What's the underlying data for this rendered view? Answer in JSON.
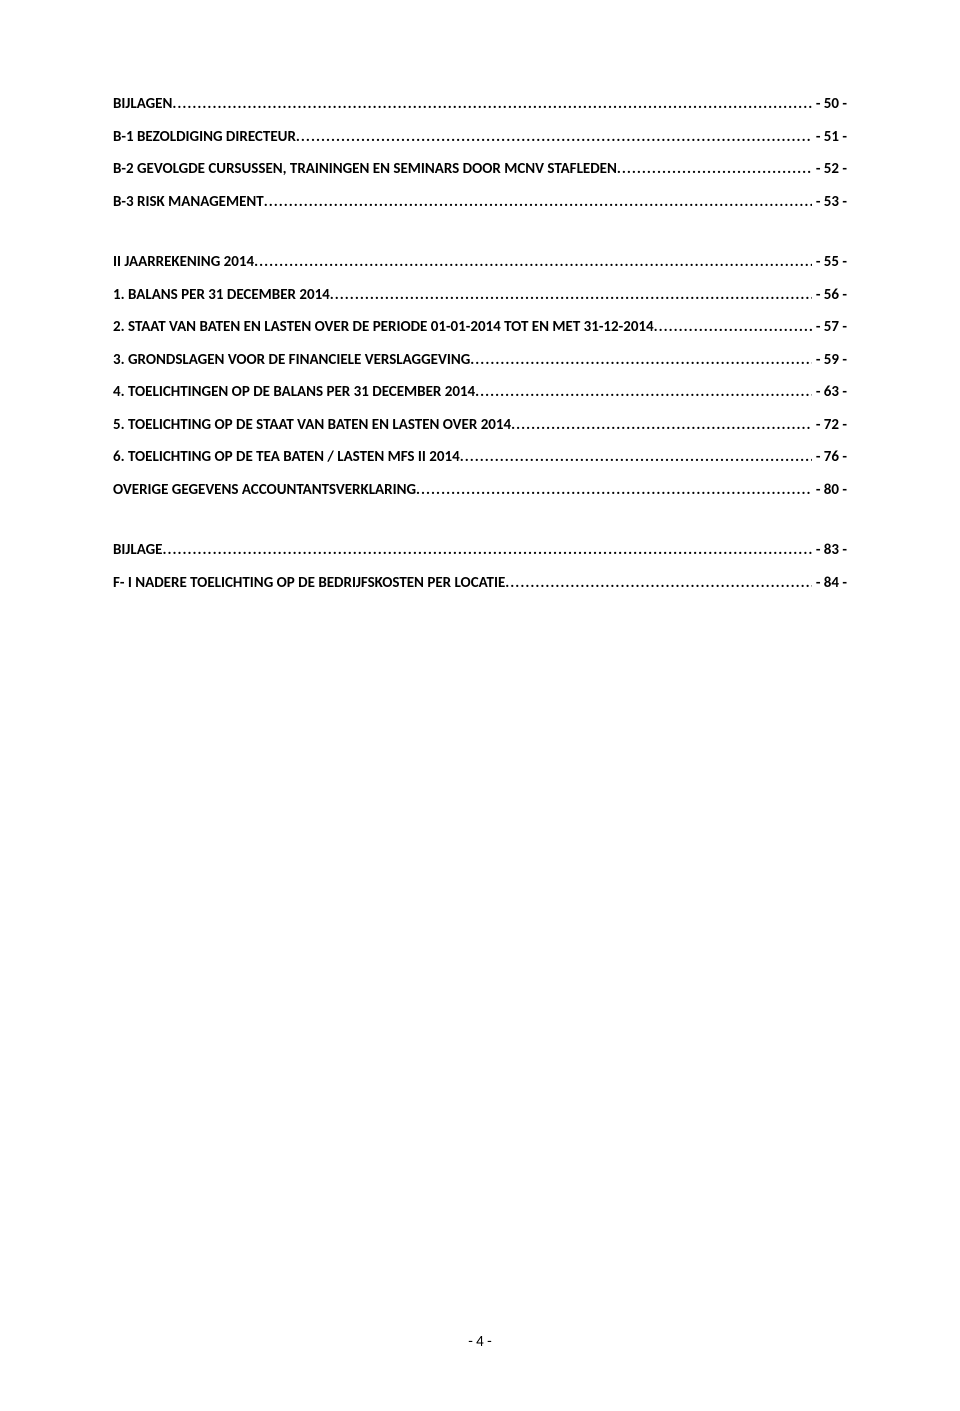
{
  "toc": [
    {
      "label": "BIJLAGEN",
      "page": "- 50 -"
    },
    {
      "label": "B-1 BEZOLDIGING DIRECTEUR",
      "page": "- 51 -"
    },
    {
      "label": "B-2 GEVOLGDE CURSUSSEN, TRAININGEN EN SEMINARS DOOR MCNV STAFLEDEN",
      "page": "- 52 -"
    },
    {
      "label": "B-3 RISK MANAGEMENT",
      "page": "- 53 -"
    },
    {
      "label": "II JAARREKENING 2014",
      "page": "- 55 -",
      "space_before": true
    },
    {
      "label": "1. BALANS PER 31 DECEMBER 2014",
      "page": "- 56 -"
    },
    {
      "label": "2. STAAT VAN BATEN EN LASTEN OVER DE PERIODE 01-01-2014 TOT EN MET 31-12-2014",
      "page": "- 57 -"
    },
    {
      "label": "3. GRONDSLAGEN VOOR DE FINANCIELE VERSLAGGEVING",
      "page": "- 59 -"
    },
    {
      "label": "4. TOELICHTINGEN OP DE BALANS PER 31 DECEMBER 2014",
      "page": "- 63 -"
    },
    {
      "label": "5. TOELICHTING OP DE STAAT VAN BATEN EN LASTEN OVER 2014",
      "page": "- 72 -"
    },
    {
      "label": "6. TOELICHTING OP DE TEA BATEN / LASTEN MFS II 2014",
      "page": "- 76 -"
    },
    {
      "label": "OVERIGE GEGEVENS ACCOUNTANTSVERKLARING",
      "page": "- 80 -"
    },
    {
      "label": "BIJLAGE",
      "page": "- 83 -",
      "space_before": true
    },
    {
      "label": "F- I NADERE TOELICHTING OP DE BEDRIJFSKOSTEN PER LOCATIE",
      "page": "- 84 -"
    }
  ],
  "page_number": "- 4 -",
  "styles": {
    "font_family": "Calibri, Arial, sans-serif",
    "font_size_pt": 11,
    "font_weight": "bold",
    "text_color": "#000000",
    "background_color": "#ffffff"
  }
}
